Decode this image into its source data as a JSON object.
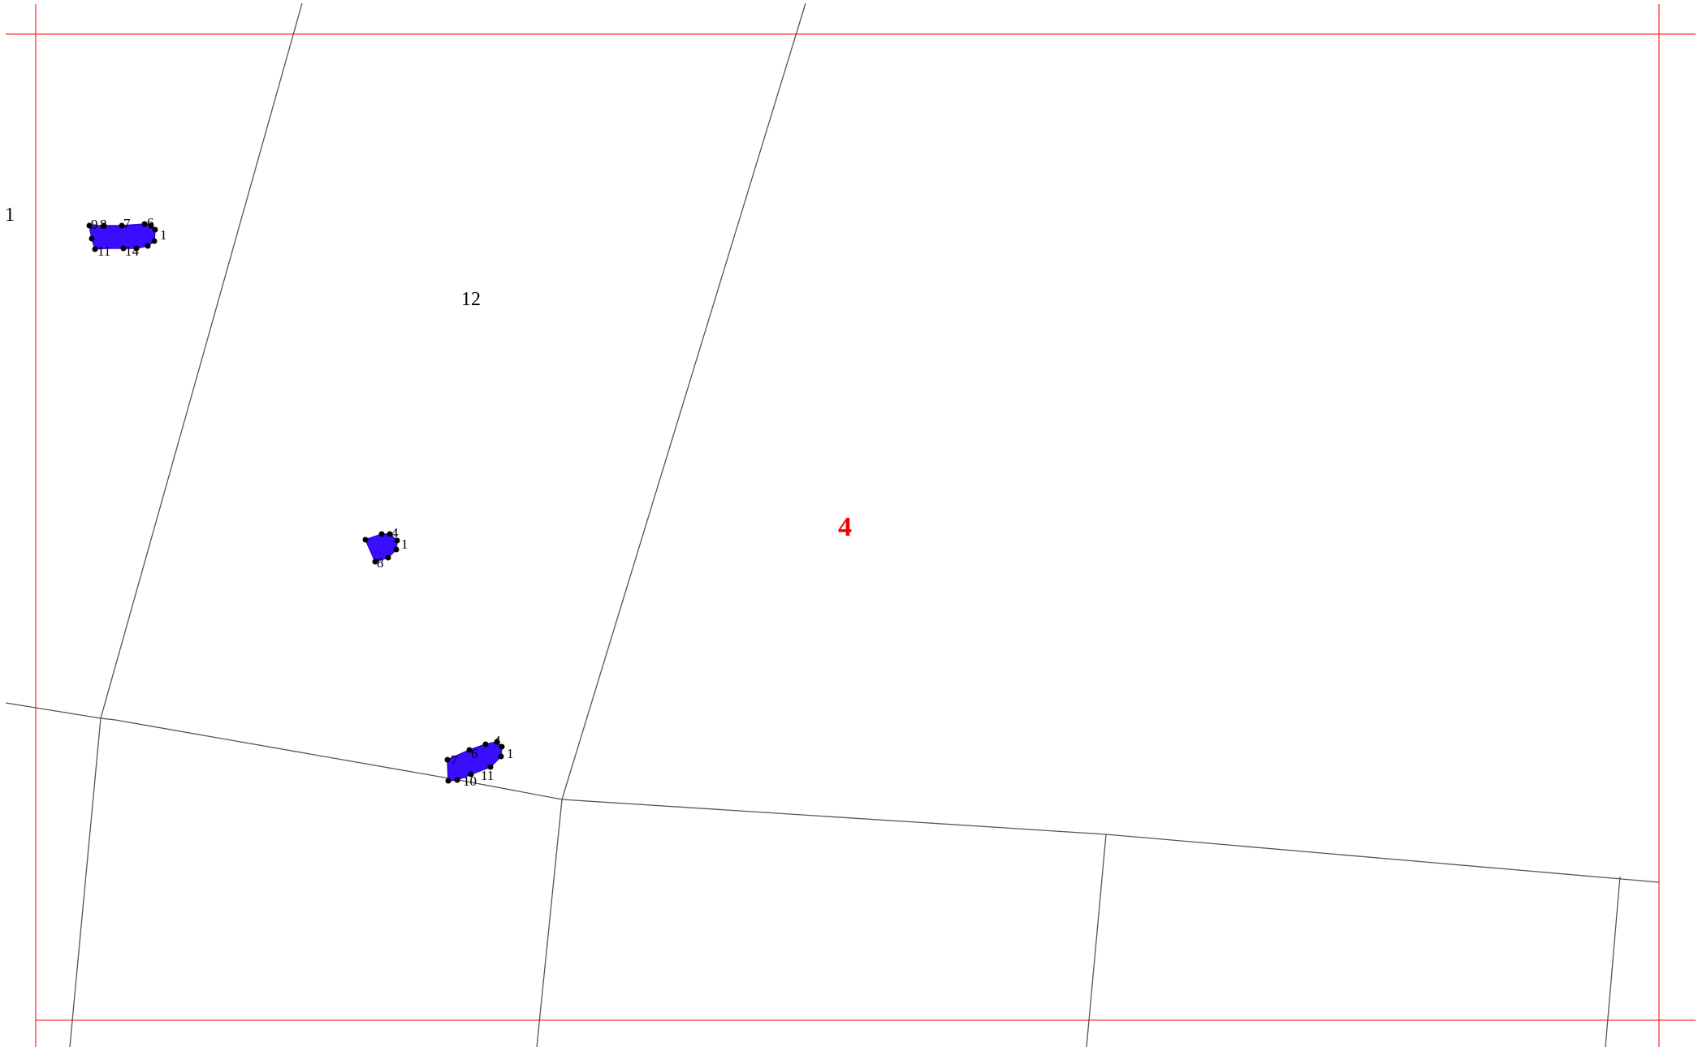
{
  "map": {
    "sheet_number": "4",
    "parcel_labels": [
      "1",
      "12"
    ],
    "frame_color": "#ff3333",
    "parcel_line_color": "#555555",
    "building_color": "#3a0dff",
    "sheet_label_color": "#ee0000",
    "buildings": [
      {
        "name": "building-a",
        "vertex_labels": [
          "9",
          "8",
          "7",
          "6",
          "1",
          "11",
          "14"
        ]
      },
      {
        "name": "building-b",
        "vertex_labels": [
          "4",
          "1",
          "8"
        ]
      },
      {
        "name": "building-c",
        "vertex_labels": [
          "4",
          "6",
          "7",
          "1",
          "11",
          "10"
        ]
      }
    ]
  }
}
